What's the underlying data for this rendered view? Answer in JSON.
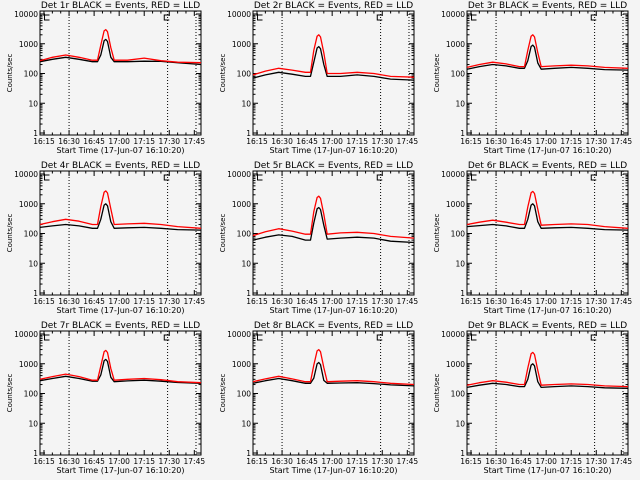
{
  "chart_data": {
    "type": "line",
    "layout": "3x3 grid",
    "y_scale": "log",
    "ylim": [
      1,
      10000
    ],
    "ylabel": "Counts/sec",
    "xlabel": "Start Time (17-Jun-07 16:10:20)",
    "x_unit": "minutes after 16:00",
    "xlim": [
      12.6,
      109
    ],
    "x_tick_values": [
      15,
      30,
      45,
      60,
      75,
      90,
      105
    ],
    "x_tick_labels": [
      "16:15",
      "16:30",
      "16:45",
      "17:00",
      "17:15",
      "17:30",
      "17:45"
    ],
    "y_tick_values": [
      1,
      10,
      100,
      1000,
      10000
    ],
    "y_tick_labels": [
      "1",
      "10",
      "100",
      "1000",
      "10000"
    ],
    "vertical_dotted_lines": [
      30,
      89,
      106
    ],
    "colors": {
      "events": "#000000",
      "lld": "#ff0000"
    },
    "x": [
      12.6,
      20,
      28,
      36,
      44,
      47,
      49,
      51,
      52,
      53,
      55,
      57,
      65,
      75,
      85,
      95,
      109
    ],
    "panels": [
      {
        "title": "Det 1r BLACK = Events, RED = LLD",
        "series": [
          {
            "name": "Events",
            "values": [
              250,
              300,
              350,
              300,
              250,
              250,
              420,
              1260,
              1400,
              1190,
              350,
              250,
              250,
              260,
              255,
              230,
              200
            ]
          },
          {
            "name": "LLD",
            "values": [
              270,
              350,
              420,
              350,
              280,
              280,
              900,
              2700,
              3000,
              2550,
              750,
              280,
              280,
              330,
              270,
              240,
              230
            ]
          }
        ]
      },
      {
        "title": "Det 2r BLACK = Events, RED = LLD",
        "series": [
          {
            "name": "Events",
            "values": [
              70,
              90,
              110,
              95,
              80,
              80,
              240,
              720,
              800,
              680,
              200,
              80,
              80,
              90,
              80,
              65,
              60
            ]
          },
          {
            "name": "LLD",
            "values": [
              90,
              120,
              150,
              130,
              110,
              110,
              600,
              1800,
              2000,
              1700,
              500,
              100,
              100,
              110,
              100,
              80,
              75
            ]
          }
        ]
      },
      {
        "title": "Det 3r BLACK = Events, RED = LLD",
        "series": [
          {
            "name": "Events",
            "values": [
              140,
              170,
              200,
              180,
              150,
              150,
              270,
              810,
              900,
              765,
              225,
              140,
              150,
              160,
              150,
              135,
              130
            ]
          },
          {
            "name": "LLD",
            "values": [
              160,
              200,
              240,
              210,
              170,
              170,
              600,
              1800,
              2000,
              1700,
              500,
              170,
              180,
              190,
              180,
              160,
              150
            ]
          }
        ]
      },
      {
        "title": "Det 4r BLACK = Events, RED = LLD",
        "series": [
          {
            "name": "Events",
            "values": [
              160,
              180,
              200,
              180,
              150,
              150,
              300,
              900,
              1000,
              850,
              250,
              150,
              155,
              160,
              150,
              135,
              130
            ]
          },
          {
            "name": "LLD",
            "values": [
              200,
              250,
              300,
              260,
              200,
              200,
              810,
              2430,
              2700,
              2300,
              675,
              200,
              210,
              220,
              200,
              170,
              150
            ]
          }
        ]
      },
      {
        "title": "Det 5r BLACK = Events, RED = LLD",
        "series": [
          {
            "name": "Events",
            "values": [
              60,
              75,
              90,
              80,
              60,
              60,
              225,
              675,
              750,
              640,
              190,
              65,
              70,
              75,
              70,
              55,
              50
            ]
          },
          {
            "name": "LLD",
            "values": [
              85,
              115,
              145,
              120,
              95,
              95,
              540,
              1620,
              1800,
              1530,
              450,
              95,
              105,
              110,
              100,
              80,
              70
            ]
          }
        ]
      },
      {
        "title": "Det 6r BLACK = Events, RED = LLD",
        "series": [
          {
            "name": "Events",
            "values": [
              170,
              185,
              200,
              180,
              150,
              150,
              300,
              900,
              1000,
              850,
              250,
              150,
              155,
              160,
              150,
              135,
              130
            ]
          },
          {
            "name": "LLD",
            "values": [
              200,
              240,
              280,
              240,
              200,
              200,
              780,
              2340,
              2600,
              2210,
              650,
              190,
              200,
              210,
              200,
              170,
              150
            ]
          }
        ]
      },
      {
        "title": "Det 7r BLACK = Events, RED = LLD",
        "series": [
          {
            "name": "Events",
            "values": [
              270,
              320,
              380,
              320,
              260,
              260,
              420,
              1260,
              1400,
              1190,
              350,
              250,
              265,
              280,
              260,
              235,
              220
            ]
          },
          {
            "name": "LLD",
            "values": [
              300,
              370,
              450,
              370,
              280,
              280,
              840,
              2520,
              2800,
              2380,
              700,
              280,
              300,
              320,
              290,
              250,
              230
            ]
          }
        ]
      },
      {
        "title": "Det 8r BLACK = Events, RED = LLD",
        "series": [
          {
            "name": "Events",
            "values": [
              220,
              270,
              320,
              270,
              220,
              220,
              330,
              990,
              1100,
              935,
              275,
              220,
              225,
              230,
              215,
              195,
              180
            ]
          },
          {
            "name": "LLD",
            "values": [
              250,
              310,
              380,
              310,
              250,
              250,
              900,
              2700,
              3000,
              2550,
              750,
              250,
              260,
              270,
              250,
              220,
              200
            ]
          }
        ]
      },
      {
        "title": "Det 9r BLACK = Events, RED = LLD",
        "series": [
          {
            "name": "Events",
            "values": [
              160,
              190,
              220,
              200,
              170,
              170,
              300,
              900,
              1000,
              850,
              250,
              160,
              170,
              180,
              170,
              155,
              150
            ]
          },
          {
            "name": "LLD",
            "values": [
              190,
              230,
              270,
              240,
              200,
              200,
              720,
              2160,
              2400,
              2040,
              600,
              190,
              200,
              210,
              200,
              180,
              170
            ]
          }
        ]
      }
    ]
  }
}
